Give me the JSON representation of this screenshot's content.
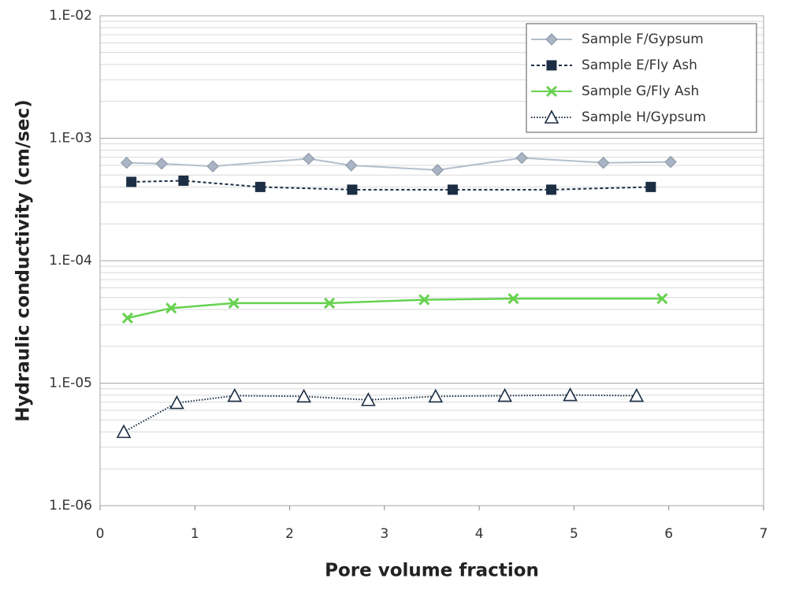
{
  "chart_data": {
    "type": "line",
    "xlabel": "Pore volume fraction",
    "ylabel": "Hydraulic conductivity (cm/sec)",
    "xlim": [
      0,
      7
    ],
    "xticks": [
      0,
      1,
      2,
      3,
      4,
      5,
      6,
      7
    ],
    "ylim": [
      1e-06,
      0.01
    ],
    "yticks": [
      {
        "value": 1e-06,
        "label": "1.E-06"
      },
      {
        "value": 1e-05,
        "label": "1.E-05"
      },
      {
        "value": 0.0001,
        "label": "1.E-04"
      },
      {
        "value": 0.001,
        "label": "1.E-03"
      },
      {
        "value": 0.01,
        "label": "1.E-02"
      }
    ],
    "ylog": true,
    "grid": true,
    "minor_grid": true,
    "legend": "upper right",
    "series": [
      {
        "name": "Sample F/Gypsum",
        "color": "#b4bfcc",
        "marker": "diamond",
        "dash": "none",
        "x": [
          0.28,
          0.65,
          1.19,
          2.2,
          2.65,
          3.56,
          4.45,
          5.31,
          6.02
        ],
        "values": [
          0.00063,
          0.00062,
          0.00059,
          0.00068,
          0.0006,
          0.00055,
          0.00069,
          0.00063,
          0.00064
        ]
      },
      {
        "name": "Sample E/Fly Ash",
        "color": "#1c2e44",
        "marker": "square",
        "dash": "4 3",
        "x": [
          0.33,
          0.88,
          1.69,
          2.66,
          3.72,
          4.76,
          5.81
        ],
        "values": [
          0.00044,
          0.00045,
          0.0004,
          0.00038,
          0.00038,
          0.00038,
          0.0004
        ]
      },
      {
        "name": "Sample G/Fly Ash",
        "color": "#66d24f",
        "marker": "x",
        "dash": "none",
        "x": [
          0.29,
          0.75,
          1.41,
          2.42,
          3.42,
          4.36,
          5.93
        ],
        "values": [
          3.4e-05,
          4.1e-05,
          4.5e-05,
          4.5e-05,
          4.8e-05,
          4.9e-05,
          4.9e-05
        ]
      },
      {
        "name": "Sample H/Gypsum",
        "color": "#1c2e44",
        "marker": "triangle",
        "dash": "1.5 2",
        "x": [
          0.25,
          0.81,
          1.42,
          2.15,
          2.83,
          3.54,
          4.27,
          4.96,
          5.66
        ],
        "values": [
          4e-06,
          6.9e-06,
          7.9e-06,
          7.8e-06,
          7.3e-06,
          7.8e-06,
          7.9e-06,
          8e-06,
          7.9e-06
        ]
      }
    ]
  }
}
